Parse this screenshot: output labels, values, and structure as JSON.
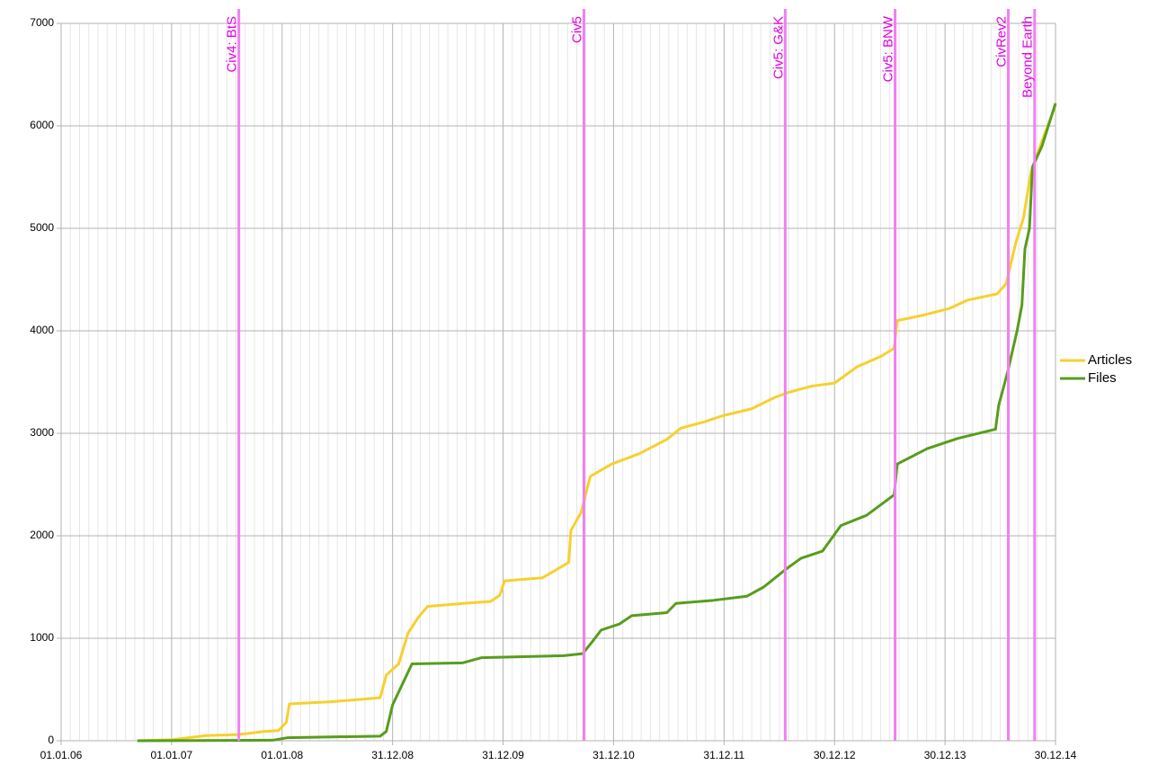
{
  "chart_data": {
    "type": "line",
    "xlim": [
      "2006-01-01",
      "2014-12-30"
    ],
    "xticks": [
      {
        "value": "2006-01-01",
        "label": "01.01.06"
      },
      {
        "value": "2007-01-01",
        "label": "01.01.07"
      },
      {
        "value": "2008-01-01",
        "label": "01.01.08"
      },
      {
        "value": "2008-12-31",
        "label": "31.12.08"
      },
      {
        "value": "2009-12-31",
        "label": "31.12.09"
      },
      {
        "value": "2010-12-31",
        "label": "31.12.10"
      },
      {
        "value": "2011-12-31",
        "label": "31.12.11"
      },
      {
        "value": "2012-12-30",
        "label": "30.12.12"
      },
      {
        "value": "2013-12-30",
        "label": "30.12.13"
      },
      {
        "value": "2014-12-30",
        "label": "30.12.14"
      }
    ],
    "ylim": [
      0,
      7000
    ],
    "yticks": [
      0,
      1000,
      2000,
      3000,
      4000,
      5000,
      6000,
      7000
    ],
    "grid": true,
    "legend": "right",
    "annotations": [
      {
        "x": "2007-08-11",
        "label": "Civ4: BtS",
        "color": "#f27ff2"
      },
      {
        "x": "2010-09-24",
        "label": "Civ5",
        "color": "#f27ff2"
      },
      {
        "x": "2012-07-20",
        "label": "Civ5: G&K",
        "color": "#f27ff2"
      },
      {
        "x": "2013-07-18",
        "label": "Civ5: BNW",
        "color": "#f27ff2"
      },
      {
        "x": "2014-07-27",
        "label": "CivRev2",
        "color": "#f27ff2"
      },
      {
        "x": "2014-10-22",
        "label": "Beyond Earth",
        "color": "#f27ff2"
      }
    ],
    "series": [
      {
        "name": "Articles",
        "color": "#f7d02e",
        "x": [
          "2006-09-10",
          "2007-01-01",
          "2007-04-25",
          "2007-08-11",
          "2007-11-01",
          "2007-12-20",
          "2008-01-15",
          "2008-01-25",
          "2008-06-10",
          "2008-11-20",
          "2008-12-10",
          "2009-01-20",
          "2009-02-20",
          "2009-03-25",
          "2009-04-25",
          "2009-08-20",
          "2009-11-20",
          "2009-12-20",
          "2010-01-05",
          "2010-05-10",
          "2010-08-05",
          "2010-08-12",
          "2010-09-15",
          "2010-10-15",
          "2010-12-25",
          "2011-03-25",
          "2011-06-25",
          "2011-08-10",
          "2011-10-25",
          "2011-12-25",
          "2012-04-01",
          "2012-06-15",
          "2012-08-01",
          "2012-10-15",
          "2012-12-30",
          "2013-03-15",
          "2013-06-01",
          "2013-07-15",
          "2013-07-25",
          "2013-10-15",
          "2014-01-15",
          "2014-03-15",
          "2014-06-20",
          "2014-07-20",
          "2014-08-20",
          "2014-09-15",
          "2014-10-10",
          "2014-11-15",
          "2014-12-30"
        ],
        "values": [
          0,
          10,
          50,
          60,
          90,
          100,
          180,
          360,
          380,
          420,
          640,
          750,
          1050,
          1200,
          1310,
          1340,
          1360,
          1420,
          1560,
          1590,
          1740,
          2050,
          2230,
          2580,
          2700,
          2800,
          2940,
          3050,
          3110,
          3170,
          3240,
          3350,
          3400,
          3460,
          3490,
          3650,
          3750,
          3830,
          4100,
          4150,
          4220,
          4300,
          4360,
          4460,
          4850,
          5100,
          5550,
          5850,
          6200
        ]
      },
      {
        "name": "Files",
        "color": "#579d1c",
        "x": [
          "2006-09-10",
          "2007-12-01",
          "2008-01-20",
          "2008-11-20",
          "2008-12-10",
          "2008-12-31",
          "2009-02-01",
          "2009-03-05",
          "2009-08-20",
          "2009-10-20",
          "2010-07-20",
          "2010-09-20",
          "2010-10-20",
          "2010-11-20",
          "2011-01-20",
          "2011-03-01",
          "2011-06-25",
          "2011-07-25",
          "2011-11-25",
          "2012-03-15",
          "2012-05-10",
          "2012-07-25",
          "2012-09-10",
          "2012-11-20",
          "2013-01-20",
          "2013-04-15",
          "2013-07-15",
          "2013-07-25",
          "2013-11-01",
          "2014-02-10",
          "2014-06-15",
          "2014-06-25",
          "2014-07-25",
          "2014-08-25",
          "2014-09-10",
          "2014-09-20",
          "2014-10-05",
          "2014-10-15",
          "2014-11-15",
          "2014-12-30"
        ],
        "values": [
          0,
          5,
          30,
          45,
          90,
          350,
          550,
          750,
          760,
          810,
          830,
          850,
          960,
          1080,
          1140,
          1220,
          1250,
          1340,
          1370,
          1410,
          1500,
          1680,
          1780,
          1850,
          2100,
          2200,
          2400,
          2700,
          2850,
          2950,
          3040,
          3270,
          3600,
          4000,
          4250,
          4800,
          5000,
          5600,
          5800,
          6220
        ]
      }
    ]
  }
}
